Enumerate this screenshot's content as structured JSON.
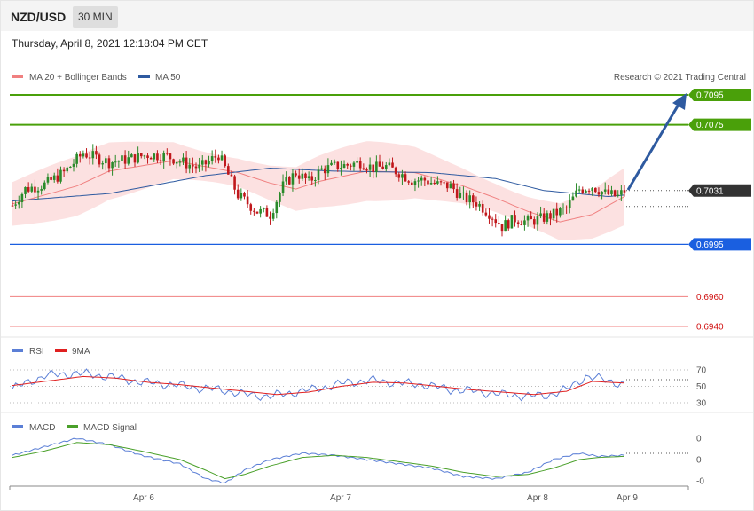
{
  "header": {
    "symbol": "NZD/USD",
    "timeframe": "30 MIN"
  },
  "timestamp": "Thursday, April 8, 2021 12:18:04 PM CET",
  "legend": {
    "ma20": {
      "label": "MA 20 + Bollinger Bands",
      "color": "#f08080"
    },
    "ma50": {
      "label": "MA 50",
      "color": "#2e5aa0"
    },
    "rsi": {
      "label": "RSI",
      "color": "#5b7fd6"
    },
    "rsi9": {
      "label": "9MA",
      "color": "#e02020"
    },
    "macd": {
      "label": "MACD",
      "color": "#5b7fd6"
    },
    "macdsig": {
      "label": "MACD Signal",
      "color": "#4aa02a"
    }
  },
  "credit": "Research © 2021 Trading Central",
  "colors": {
    "up": "#2a8a2a",
    "down": "#c0181c",
    "band": "#fbdcdc",
    "resistance": "#4aa00a",
    "support": "#1a5fe0",
    "lowerLevel": "#f08080",
    "current": "#333333",
    "arrow": "#2e5aa0"
  },
  "chart_data": {
    "type": "candlestick",
    "x_labels": [
      "Apr 6",
      "Apr 7",
      "Apr 8",
      "Apr 9"
    ],
    "levels": [
      {
        "value": 0.7095,
        "label": "0.7095",
        "kind": "resistance"
      },
      {
        "value": 0.7075,
        "label": "0.7075",
        "kind": "resistance"
      },
      {
        "value": 0.7031,
        "label": "0.7031",
        "kind": "current"
      },
      {
        "value": 0.6995,
        "label": "0.6995",
        "kind": "support"
      },
      {
        "value": 0.696,
        "label": "0.6960",
        "kind": "lower"
      },
      {
        "value": 0.694,
        "label": "0.6940",
        "kind": "lower"
      }
    ],
    "price_path": [
      [
        0,
        0.7021
      ],
      [
        4,
        0.7032
      ],
      [
        10,
        0.7035
      ],
      [
        16,
        0.7043
      ],
      [
        22,
        0.7056
      ],
      [
        26,
        0.7053
      ],
      [
        30,
        0.705
      ],
      [
        36,
        0.7052
      ],
      [
        42,
        0.7055
      ],
      [
        48,
        0.7054
      ],
      [
        54,
        0.7049
      ],
      [
        58,
        0.7046
      ],
      [
        64,
        0.7055
      ],
      [
        70,
        0.7028
      ],
      [
        76,
        0.7017
      ],
      [
        80,
        0.7015
      ],
      [
        84,
        0.7034
      ],
      [
        88,
        0.7043
      ],
      [
        92,
        0.7037
      ],
      [
        96,
        0.7045
      ],
      [
        100,
        0.7047
      ],
      [
        104,
        0.7048
      ],
      [
        108,
        0.705
      ],
      [
        112,
        0.7046
      ],
      [
        116,
        0.7047
      ],
      [
        120,
        0.7043
      ],
      [
        124,
        0.7038
      ],
      [
        128,
        0.7038
      ],
      [
        132,
        0.7035
      ],
      [
        136,
        0.7034
      ],
      [
        140,
        0.7026
      ],
      [
        144,
        0.7023
      ],
      [
        148,
        0.7016
      ],
      [
        152,
        0.7007
      ],
      [
        156,
        0.7012
      ],
      [
        160,
        0.701
      ],
      [
        164,
        0.7012
      ],
      [
        168,
        0.7015
      ],
      [
        172,
        0.7019
      ],
      [
        176,
        0.7032
      ],
      [
        180,
        0.7034
      ],
      [
        184,
        0.7029
      ],
      [
        188,
        0.7027
      ],
      [
        190,
        0.7031
      ]
    ],
    "ma50_path": [
      [
        0,
        0.7024
      ],
      [
        30,
        0.7029
      ],
      [
        60,
        0.7041
      ],
      [
        80,
        0.7046
      ],
      [
        100,
        0.7044
      ],
      [
        130,
        0.7043
      ],
      [
        150,
        0.7039
      ],
      [
        165,
        0.7031
      ],
      [
        185,
        0.7027
      ],
      [
        190,
        0.7028
      ]
    ],
    "ma20_path": [
      [
        0,
        0.7022
      ],
      [
        20,
        0.7034
      ],
      [
        30,
        0.7044
      ],
      [
        50,
        0.7051
      ],
      [
        70,
        0.7043
      ],
      [
        80,
        0.7036
      ],
      [
        88,
        0.7032
      ],
      [
        95,
        0.7037
      ],
      [
        110,
        0.7044
      ],
      [
        125,
        0.7043
      ],
      [
        140,
        0.7034
      ],
      [
        150,
        0.7026
      ],
      [
        160,
        0.7017
      ],
      [
        170,
        0.701
      ],
      [
        180,
        0.7015
      ],
      [
        190,
        0.7027
      ]
    ],
    "bollinger": {
      "width_at_ends": 0.0008,
      "max_width": 0.002
    },
    "rsi": {
      "ticks": [
        "70",
        "50",
        "30"
      ],
      "values": [
        [
          0,
          47
        ],
        [
          10,
          63
        ],
        [
          20,
          66
        ],
        [
          30,
          62
        ],
        [
          40,
          55
        ],
        [
          50,
          52
        ],
        [
          58,
          48
        ],
        [
          66,
          45
        ],
        [
          72,
          40
        ],
        [
          80,
          38
        ],
        [
          88,
          43
        ],
        [
          96,
          48
        ],
        [
          104,
          55
        ],
        [
          112,
          57
        ],
        [
          120,
          54
        ],
        [
          128,
          52
        ],
        [
          136,
          46
        ],
        [
          144,
          44
        ],
        [
          152,
          40
        ],
        [
          160,
          38
        ],
        [
          166,
          39
        ],
        [
          172,
          46
        ],
        [
          178,
          62
        ],
        [
          184,
          58
        ],
        [
          190,
          52
        ]
      ],
      "ma9": [
        [
          0,
          51
        ],
        [
          12,
          57
        ],
        [
          22,
          62
        ],
        [
          32,
          60
        ],
        [
          42,
          55
        ],
        [
          52,
          52
        ],
        [
          62,
          48
        ],
        [
          72,
          44
        ],
        [
          82,
          40
        ],
        [
          92,
          43
        ],
        [
          102,
          50
        ],
        [
          112,
          55
        ],
        [
          122,
          54
        ],
        [
          132,
          50
        ],
        [
          142,
          46
        ],
        [
          152,
          43
        ],
        [
          162,
          40
        ],
        [
          172,
          44
        ],
        [
          180,
          56
        ],
        [
          190,
          54
        ]
      ]
    },
    "macd": {
      "ticks": [
        "0",
        "0",
        "-0"
      ],
      "values": [
        [
          0,
          0.2
        ],
        [
          10,
          0.6
        ],
        [
          20,
          1.0
        ],
        [
          30,
          0.7
        ],
        [
          40,
          0.2
        ],
        [
          52,
          -0.2
        ],
        [
          60,
          -0.9
        ],
        [
          66,
          -1.1
        ],
        [
          72,
          -0.5
        ],
        [
          80,
          0.0
        ],
        [
          90,
          0.3
        ],
        [
          100,
          0.2
        ],
        [
          110,
          0.0
        ],
        [
          120,
          -0.2
        ],
        [
          130,
          -0.4
        ],
        [
          140,
          -0.8
        ],
        [
          150,
          -0.9
        ],
        [
          160,
          -0.6
        ],
        [
          168,
          0.0
        ],
        [
          176,
          0.3
        ],
        [
          182,
          0.15
        ],
        [
          190,
          0.2
        ]
      ],
      "signal": [
        [
          0,
          0.1
        ],
        [
          10,
          0.4
        ],
        [
          20,
          0.8
        ],
        [
          30,
          0.7
        ],
        [
          40,
          0.4
        ],
        [
          52,
          0.0
        ],
        [
          60,
          -0.5
        ],
        [
          66,
          -0.9
        ],
        [
          72,
          -0.7
        ],
        [
          80,
          -0.3
        ],
        [
          90,
          0.1
        ],
        [
          100,
          0.2
        ],
        [
          110,
          0.1
        ],
        [
          120,
          -0.1
        ],
        [
          130,
          -0.3
        ],
        [
          140,
          -0.6
        ],
        [
          150,
          -0.8
        ],
        [
          160,
          -0.7
        ],
        [
          168,
          -0.4
        ],
        [
          176,
          0.0
        ],
        [
          182,
          0.1
        ],
        [
          190,
          0.15
        ]
      ]
    }
  }
}
